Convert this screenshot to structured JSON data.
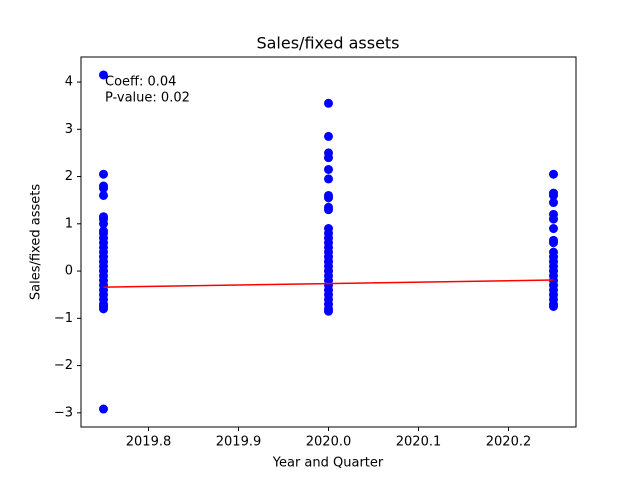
{
  "chart_data": {
    "type": "scatter",
    "title": "Sales/fixed assets",
    "xlabel": "Year and Quarter",
    "ylabel": "Sales/fixed assets",
    "annotations": [
      "Coeff: 0.04",
      "P-value: 0.02"
    ],
    "xlim": [
      2019.725,
      2020.275
    ],
    "ylim": [
      -3.3,
      4.53
    ],
    "xticks": [
      2019.8,
      2019.9,
      {
        "value": 2020,
        "label": "2020.0"
      },
      2020.1,
      2020.2
    ],
    "yticks": [
      {
        "value": -3,
        "label": "−3"
      },
      {
        "value": -2,
        "label": "−2"
      },
      {
        "value": -1,
        "label": "−1"
      },
      0,
      1,
      2,
      3,
      4
    ],
    "grid": false,
    "series": [
      {
        "color": "#0000ff",
        "x": 2019.75,
        "values": [
          4.15,
          2.05,
          1.8,
          1.75,
          1.6,
          1.15,
          1.1,
          1.0,
          0.85,
          0.8,
          0.7,
          0.6,
          0.5,
          0.4,
          0.3,
          0.2,
          0.1,
          0.0,
          -0.1,
          -0.2,
          -0.3,
          -0.4,
          -0.5,
          -0.6,
          -0.7,
          -0.75,
          -0.8,
          -2.92
        ]
      },
      {
        "color": "#0000ff",
        "x": 2020.0,
        "values": [
          3.55,
          2.85,
          2.5,
          2.4,
          2.15,
          1.95,
          1.6,
          1.55,
          1.35,
          1.3,
          0.9,
          0.8,
          0.7,
          0.6,
          0.5,
          0.4,
          0.3,
          0.2,
          0.1,
          0.0,
          -0.1,
          -0.2,
          -0.3,
          -0.4,
          -0.5,
          -0.6,
          -0.7,
          -0.8,
          -0.85
        ]
      },
      {
        "color": "#0000ff",
        "x": 2020.25,
        "values": [
          2.05,
          1.65,
          1.6,
          1.45,
          1.2,
          1.1,
          0.9,
          0.65,
          0.6,
          0.4,
          0.3,
          0.2,
          0.1,
          0.0,
          -0.1,
          -0.2,
          -0.3,
          -0.4,
          -0.5,
          -0.6,
          -0.7,
          -0.75
        ]
      }
    ],
    "fit": {
      "color": "#ff0000",
      "x": [
        2019.75,
        2020.25
      ],
      "values": [
        -0.34,
        -0.19
      ]
    }
  }
}
